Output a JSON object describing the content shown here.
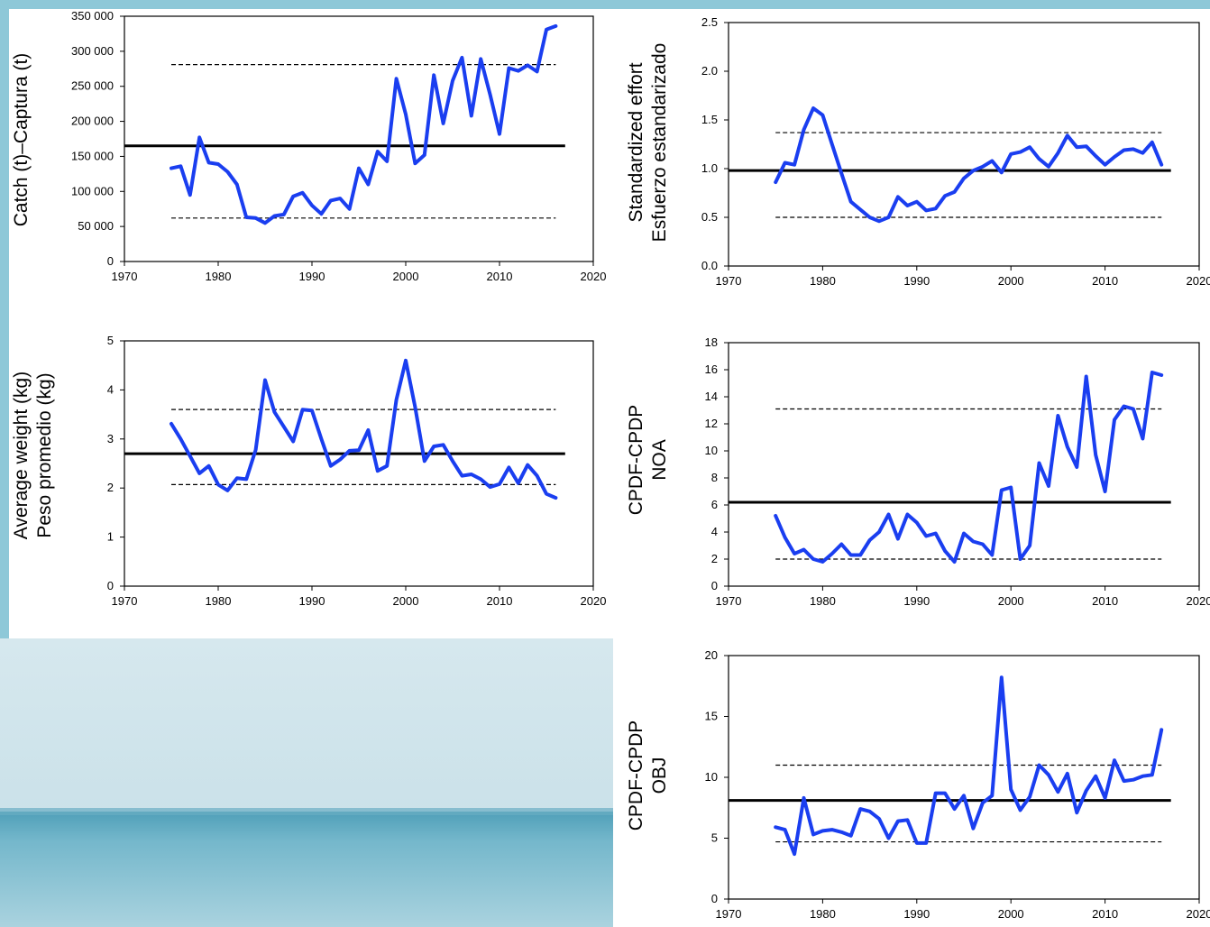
{
  "chart_data": [
    {
      "type": "line",
      "ylabel": [
        "Catch (t)–Captura (t)"
      ],
      "x_ticks": [
        1970,
        1980,
        1990,
        2000,
        2010,
        2020
      ],
      "y_ticks": [
        "0",
        "50 000",
        "100 000",
        "150 000",
        "200 000",
        "250 000",
        "300 000",
        "350 000"
      ],
      "xlim": [
        1970,
        2020
      ],
      "ylim": [
        0,
        350000
      ],
      "mean": 165000,
      "lower": 62000,
      "upper": 281000,
      "ref_x": [
        1975,
        2016
      ],
      "mean_x": [
        1970,
        2017
      ],
      "series_color": "#1a3ef0",
      "x": [
        1975,
        1976,
        1977,
        1978,
        1979,
        1980,
        1981,
        1982,
        1983,
        1984,
        1985,
        1986,
        1987,
        1988,
        1989,
        1990,
        1991,
        1992,
        1993,
        1994,
        1995,
        1996,
        1997,
        1998,
        1999,
        2000,
        2001,
        2002,
        2003,
        2004,
        2005,
        2006,
        2007,
        2008,
        2009,
        2010,
        2011,
        2012,
        2013,
        2014,
        2015,
        2016
      ],
      "y": [
        133000,
        136000,
        95000,
        177000,
        141000,
        139000,
        128000,
        110000,
        63000,
        62000,
        55000,
        65000,
        67000,
        93000,
        98000,
        80000,
        68000,
        87000,
        90000,
        75000,
        133000,
        110000,
        157000,
        143000,
        261000,
        210000,
        140000,
        152000,
        266000,
        197000,
        258000,
        291000,
        208000,
        289000,
        238000,
        182000,
        276000,
        272000,
        280000,
        271000,
        331000,
        336000
      ]
    },
    {
      "type": "line",
      "ylabel": [
        "Standardized effort",
        "Esfuerzo estandarizado"
      ],
      "x_ticks": [
        1970,
        1980,
        1990,
        2000,
        2010,
        2020
      ],
      "y_ticks": [
        "0.0",
        "0.5",
        "1.0",
        "1.5",
        "2.0",
        "2.5"
      ],
      "xlim": [
        1970,
        2020
      ],
      "ylim": [
        0,
        2.5
      ],
      "mean": 0.98,
      "lower": 0.5,
      "upper": 1.37,
      "ref_x": [
        1975,
        2016
      ],
      "mean_x": [
        1970,
        2017
      ],
      "series_color": "#1a3ef0",
      "x": [
        1975,
        1976,
        1977,
        1978,
        1979,
        1980,
        1981,
        1982,
        1983,
        1984,
        1985,
        1986,
        1987,
        1988,
        1989,
        1990,
        1991,
        1992,
        1993,
        1994,
        1995,
        1996,
        1997,
        1998,
        1999,
        2000,
        2001,
        2002,
        2003,
        2004,
        2005,
        2006,
        2007,
        2008,
        2009,
        2010,
        2011,
        2012,
        2013,
        2014,
        2015,
        2016
      ],
      "y": [
        0.86,
        1.06,
        1.04,
        1.4,
        1.62,
        1.55,
        1.25,
        0.95,
        0.66,
        0.58,
        0.5,
        0.46,
        0.5,
        0.71,
        0.62,
        0.66,
        0.57,
        0.59,
        0.72,
        0.76,
        0.9,
        0.98,
        1.02,
        1.08,
        0.96,
        1.15,
        1.17,
        1.22,
        1.1,
        1.02,
        1.16,
        1.34,
        1.22,
        1.23,
        1.13,
        1.04,
        1.12,
        1.19,
        1.2,
        1.16,
        1.27,
        1.04
      ]
    },
    {
      "type": "line",
      "ylabel": [
        "Average weight (kg)",
        "Peso promedio (kg)"
      ],
      "x_ticks": [
        1970,
        1980,
        1990,
        2000,
        2010,
        2020
      ],
      "y_ticks": [
        "0",
        "1",
        "2",
        "3",
        "4",
        "5"
      ],
      "xlim": [
        1970,
        2020
      ],
      "ylim": [
        0,
        5
      ],
      "mean": 2.7,
      "lower": 2.07,
      "upper": 3.6,
      "ref_x": [
        1975,
        2016
      ],
      "mean_x": [
        1970,
        2017
      ],
      "series_color": "#1a3ef0",
      "x": [
        1975,
        1976,
        1977,
        1978,
        1979,
        1980,
        1981,
        1982,
        1983,
        1984,
        1985,
        1986,
        1987,
        1988,
        1989,
        1990,
        1991,
        1992,
        1993,
        1994,
        1995,
        1996,
        1997,
        1998,
        1999,
        2000,
        2001,
        2002,
        2003,
        2004,
        2005,
        2006,
        2007,
        2008,
        2009,
        2010,
        2011,
        2012,
        2013,
        2014,
        2015,
        2016
      ],
      "y": [
        3.31,
        3.0,
        2.65,
        2.3,
        2.45,
        2.07,
        1.95,
        2.2,
        2.18,
        2.78,
        4.2,
        3.55,
        3.25,
        2.95,
        3.6,
        3.58,
        3.0,
        2.45,
        2.58,
        2.76,
        2.77,
        3.18,
        2.35,
        2.45,
        3.8,
        4.6,
        3.65,
        2.55,
        2.85,
        2.88,
        2.55,
        2.25,
        2.28,
        2.18,
        2.02,
        2.08,
        2.42,
        2.1,
        2.47,
        2.25,
        1.88,
        1.8
      ]
    },
    {
      "type": "line",
      "ylabel": [
        "CPDF-CPDP",
        "NOA"
      ],
      "x_ticks": [
        1970,
        1980,
        1990,
        2000,
        2010,
        2020
      ],
      "y_ticks": [
        "0",
        "2",
        "4",
        "6",
        "8",
        "10",
        "12",
        "14",
        "16",
        "18"
      ],
      "xlim": [
        1970,
        2020
      ],
      "ylim": [
        0,
        18
      ],
      "mean": 6.2,
      "lower": 2.0,
      "upper": 13.1,
      "ref_x": [
        1975,
        2016
      ],
      "mean_x": [
        1970,
        2017
      ],
      "series_color": "#1a3ef0",
      "x": [
        1975,
        1976,
        1977,
        1978,
        1979,
        1980,
        1981,
        1982,
        1983,
        1984,
        1985,
        1986,
        1987,
        1988,
        1989,
        1990,
        1991,
        1992,
        1993,
        1994,
        1995,
        1996,
        1997,
        1998,
        1999,
        2000,
        2001,
        2002,
        2003,
        2004,
        2005,
        2006,
        2007,
        2008,
        2009,
        2010,
        2011,
        2012,
        2013,
        2014,
        2015,
        2016
      ],
      "y": [
        5.2,
        3.6,
        2.4,
        2.7,
        2.0,
        1.8,
        2.4,
        3.1,
        2.3,
        2.3,
        3.4,
        4.0,
        5.3,
        3.5,
        5.3,
        4.7,
        3.7,
        3.9,
        2.6,
        1.8,
        3.9,
        3.3,
        3.1,
        2.3,
        7.1,
        7.3,
        2.0,
        3.0,
        9.1,
        7.4,
        12.6,
        10.3,
        8.8,
        15.5,
        9.7,
        7.0,
        12.3,
        13.3,
        13.1,
        10.9,
        15.8,
        15.6
      ]
    },
    {
      "type": "line",
      "ylabel": [
        "CPDF-CPDP",
        "OBJ"
      ],
      "x_ticks": [
        1970,
        1980,
        1990,
        2000,
        2010,
        2020
      ],
      "y_ticks": [
        "0",
        "5",
        "10",
        "15",
        "20"
      ],
      "xlim": [
        1970,
        2020
      ],
      "ylim": [
        0,
        20
      ],
      "mean": 8.1,
      "lower": 4.7,
      "upper": 11.0,
      "ref_x": [
        1975,
        2016
      ],
      "mean_x": [
        1970,
        2017
      ],
      "series_color": "#1a3ef0",
      "x": [
        1975,
        1976,
        1977,
        1978,
        1979,
        1980,
        1981,
        1982,
        1983,
        1984,
        1985,
        1986,
        1987,
        1988,
        1989,
        1990,
        1991,
        1992,
        1993,
        1994,
        1995,
        1996,
        1997,
        1998,
        1999,
        2000,
        2001,
        2002,
        2003,
        2004,
        2005,
        2006,
        2007,
        2008,
        2009,
        2010,
        2011,
        2012,
        2013,
        2014,
        2015,
        2016
      ],
      "y": [
        5.9,
        5.7,
        3.7,
        8.3,
        5.3,
        5.6,
        5.7,
        5.5,
        5.2,
        7.4,
        7.2,
        6.6,
        5.0,
        6.4,
        6.5,
        4.6,
        4.6,
        8.7,
        8.7,
        7.4,
        8.5,
        5.8,
        7.9,
        8.5,
        18.2,
        9.0,
        7.3,
        8.4,
        11.0,
        10.2,
        8.8,
        10.3,
        7.1,
        8.9,
        10.1,
        8.3,
        11.4,
        9.7,
        9.8,
        10.1,
        10.2,
        13.9
      ]
    }
  ]
}
